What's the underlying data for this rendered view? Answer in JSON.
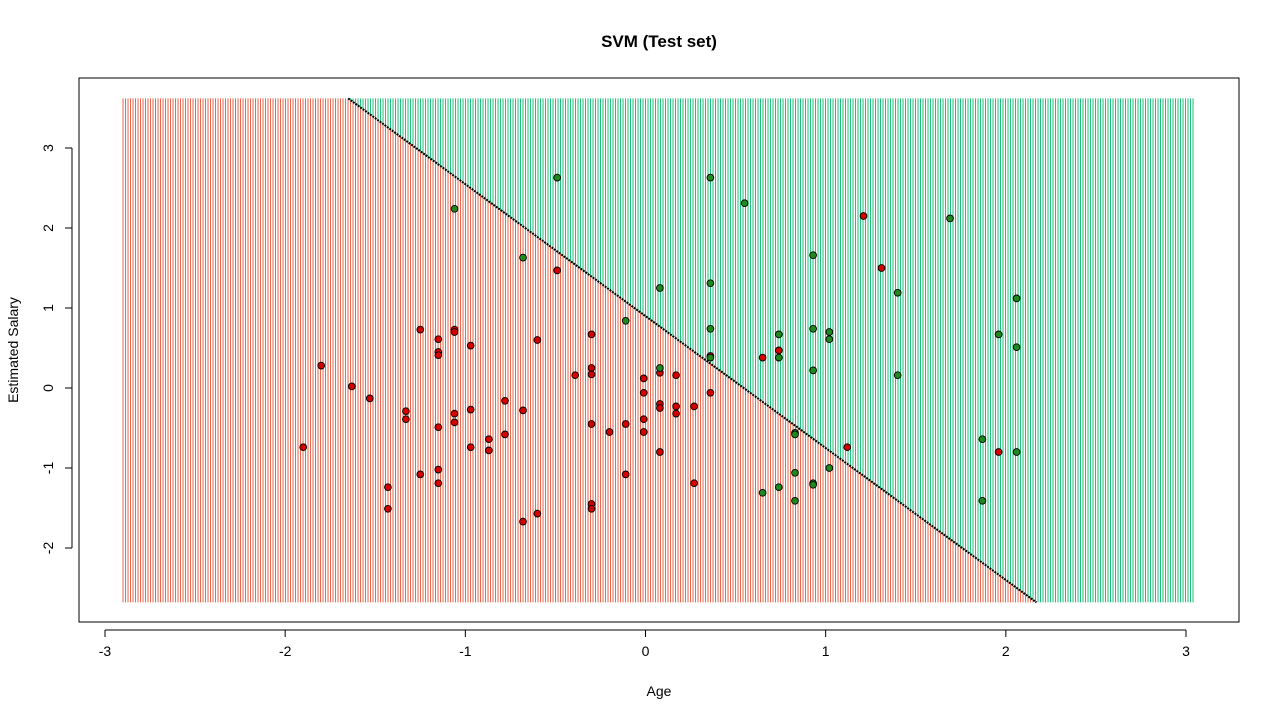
{
  "chart_data": {
    "type": "scatter",
    "title": "SVM (Test set)",
    "xlabel": "Age",
    "ylabel": "Estimated Salary",
    "xlim": [
      -3,
      3
    ],
    "ylim": [
      -3,
      3.6
    ],
    "xticks": [
      -3,
      -2,
      -1,
      0,
      1,
      2,
      3
    ],
    "yticks": [
      -2,
      -1,
      0,
      1,
      2,
      3
    ],
    "grid_range": {
      "x": [
        -2.9,
        3.05
      ],
      "y": [
        -2.68,
        3.62
      ]
    },
    "decision_boundary": {
      "p1": [
        -1.65,
        3.62
      ],
      "p2": [
        2.17,
        -2.68
      ]
    },
    "region_colors": {
      "class_0": "#e8664e",
      "class_1": "#1fbf7a"
    },
    "point_colors": {
      "class_0": "#d40000",
      "class_1": "#1e8a1e"
    },
    "series": [
      {
        "name": "0",
        "points": [
          [
            -1.9,
            -0.74
          ],
          [
            -1.8,
            0.28
          ],
          [
            -1.63,
            0.02
          ],
          [
            -1.53,
            -0.13
          ],
          [
            -1.43,
            -1.24
          ],
          [
            -1.43,
            -1.51
          ],
          [
            -1.33,
            -0.29
          ],
          [
            -1.33,
            -0.39
          ],
          [
            -1.25,
            0.73
          ],
          [
            -1.25,
            -1.08
          ],
          [
            -1.15,
            0.61
          ],
          [
            -1.15,
            0.45
          ],
          [
            -1.15,
            0.41
          ],
          [
            -1.15,
            -0.49
          ],
          [
            -1.15,
            -1.02
          ],
          [
            -1.15,
            -1.19
          ],
          [
            -1.06,
            0.73
          ],
          [
            -1.06,
            0.7
          ],
          [
            -1.06,
            -0.32
          ],
          [
            -1.06,
            -0.43
          ],
          [
            -0.97,
            0.53
          ],
          [
            -0.97,
            -0.27
          ],
          [
            -0.97,
            -0.74
          ],
          [
            -0.87,
            -0.64
          ],
          [
            -0.87,
            -0.78
          ],
          [
            -0.78,
            -0.16
          ],
          [
            -0.78,
            -0.58
          ],
          [
            -0.68,
            -0.28
          ],
          [
            -0.68,
            -1.67
          ],
          [
            -0.6,
            0.6
          ],
          [
            -0.6,
            -1.57
          ],
          [
            -0.49,
            1.47
          ],
          [
            -0.39,
            0.16
          ],
          [
            -0.3,
            0.67
          ],
          [
            -0.3,
            0.25
          ],
          [
            -0.3,
            0.17
          ],
          [
            -0.3,
            -0.45
          ],
          [
            -0.3,
            -1.45
          ],
          [
            -0.3,
            -1.51
          ],
          [
            -0.2,
            -0.55
          ],
          [
            -0.11,
            -0.45
          ],
          [
            -0.11,
            -1.08
          ],
          [
            -0.01,
            0.12
          ],
          [
            -0.01,
            -0.06
          ],
          [
            -0.01,
            -0.39
          ],
          [
            -0.01,
            -0.55
          ],
          [
            0.08,
            0.19
          ],
          [
            0.08,
            -0.2
          ],
          [
            0.08,
            -0.25
          ],
          [
            0.08,
            -0.8
          ],
          [
            0.17,
            0.16
          ],
          [
            0.17,
            -0.23
          ],
          [
            0.17,
            -0.32
          ],
          [
            0.27,
            -0.23
          ],
          [
            0.27,
            -1.19
          ],
          [
            0.36,
            0.4
          ],
          [
            0.36,
            -0.06
          ],
          [
            0.65,
            0.38
          ],
          [
            0.74,
            0.47
          ],
          [
            1.12,
            -0.74
          ],
          [
            1.21,
            2.15
          ],
          [
            1.31,
            1.5
          ],
          [
            1.96,
            -0.8
          ]
        ]
      },
      {
        "name": "1",
        "points": [
          [
            -1.06,
            2.24
          ],
          [
            -0.68,
            1.63
          ],
          [
            -0.49,
            2.63
          ],
          [
            -0.11,
            0.84
          ],
          [
            0.08,
            1.25
          ],
          [
            0.08,
            0.25
          ],
          [
            0.36,
            2.63
          ],
          [
            0.36,
            1.31
          ],
          [
            0.36,
            0.74
          ],
          [
            0.36,
            0.38
          ],
          [
            0.55,
            2.31
          ],
          [
            0.65,
            -1.31
          ],
          [
            0.74,
            0.67
          ],
          [
            0.74,
            0.38
          ],
          [
            0.74,
            -1.24
          ],
          [
            0.83,
            -0.56
          ],
          [
            0.83,
            -0.58
          ],
          [
            0.83,
            -1.06
          ],
          [
            0.83,
            -1.41
          ],
          [
            0.93,
            1.66
          ],
          [
            0.93,
            0.74
          ],
          [
            0.93,
            0.22
          ],
          [
            0.93,
            -1.19
          ],
          [
            0.93,
            -1.21
          ],
          [
            1.02,
            0.7
          ],
          [
            1.02,
            0.61
          ],
          [
            1.02,
            -1.0
          ],
          [
            1.4,
            1.19
          ],
          [
            1.4,
            0.16
          ],
          [
            1.69,
            2.12
          ],
          [
            1.87,
            -0.64
          ],
          [
            1.87,
            -1.41
          ],
          [
            1.96,
            0.67
          ],
          [
            2.06,
            1.12
          ],
          [
            2.06,
            0.51
          ],
          [
            2.06,
            -0.8
          ]
        ]
      }
    ]
  }
}
